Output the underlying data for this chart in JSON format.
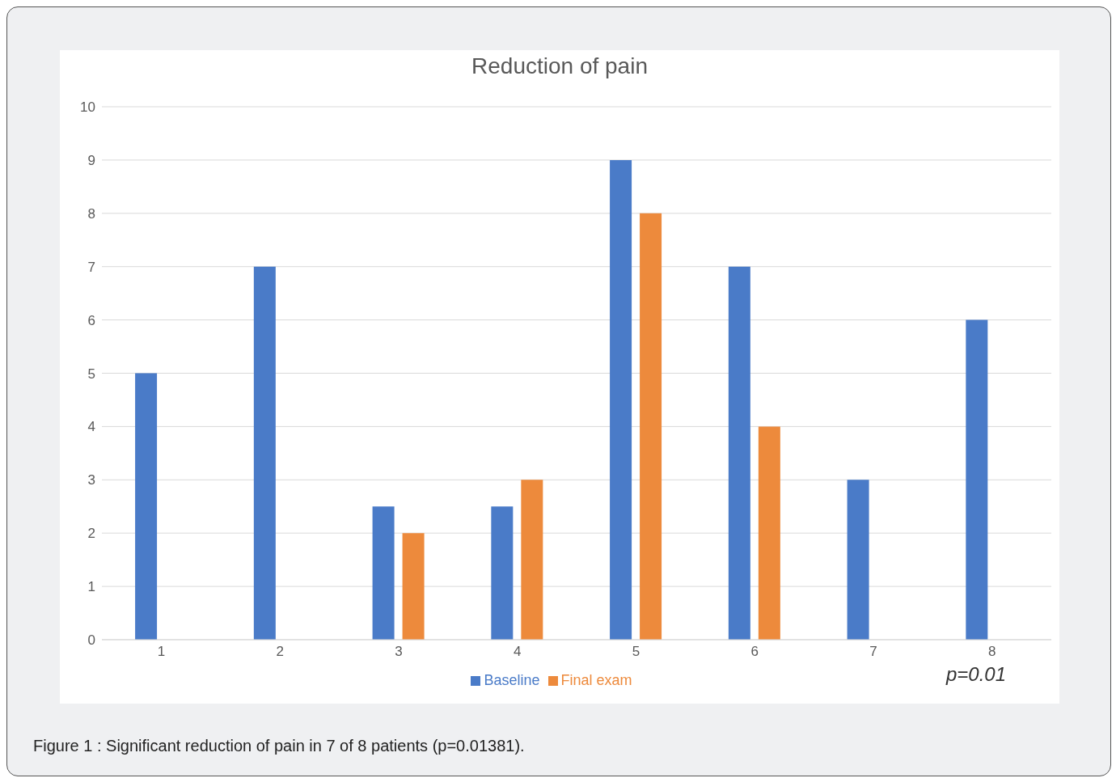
{
  "chart_data": {
    "type": "bar",
    "title": "Reduction of pain",
    "categories": [
      "1",
      "2",
      "3",
      "4",
      "5",
      "6",
      "7",
      "8"
    ],
    "series": [
      {
        "name": "Baseline",
        "color": "#4a7bc8",
        "values": [
          5,
          7,
          2.5,
          2.5,
          9,
          7,
          3,
          6
        ]
      },
      {
        "name": "Final exam",
        "color": "#ed8a3c",
        "values": [
          0,
          0,
          2,
          3,
          8,
          4,
          0,
          0
        ]
      }
    ],
    "ylim": [
      0,
      10
    ],
    "yticks": [
      0,
      1,
      2,
      3,
      4,
      5,
      6,
      7,
      8,
      9,
      10
    ],
    "grid": "y",
    "legend": "bottom",
    "annotations": [
      "p=0.01",
      "Figure 1 : Significant reduction of pain in 7 of 8 patients (p=0.01381)."
    ]
  }
}
